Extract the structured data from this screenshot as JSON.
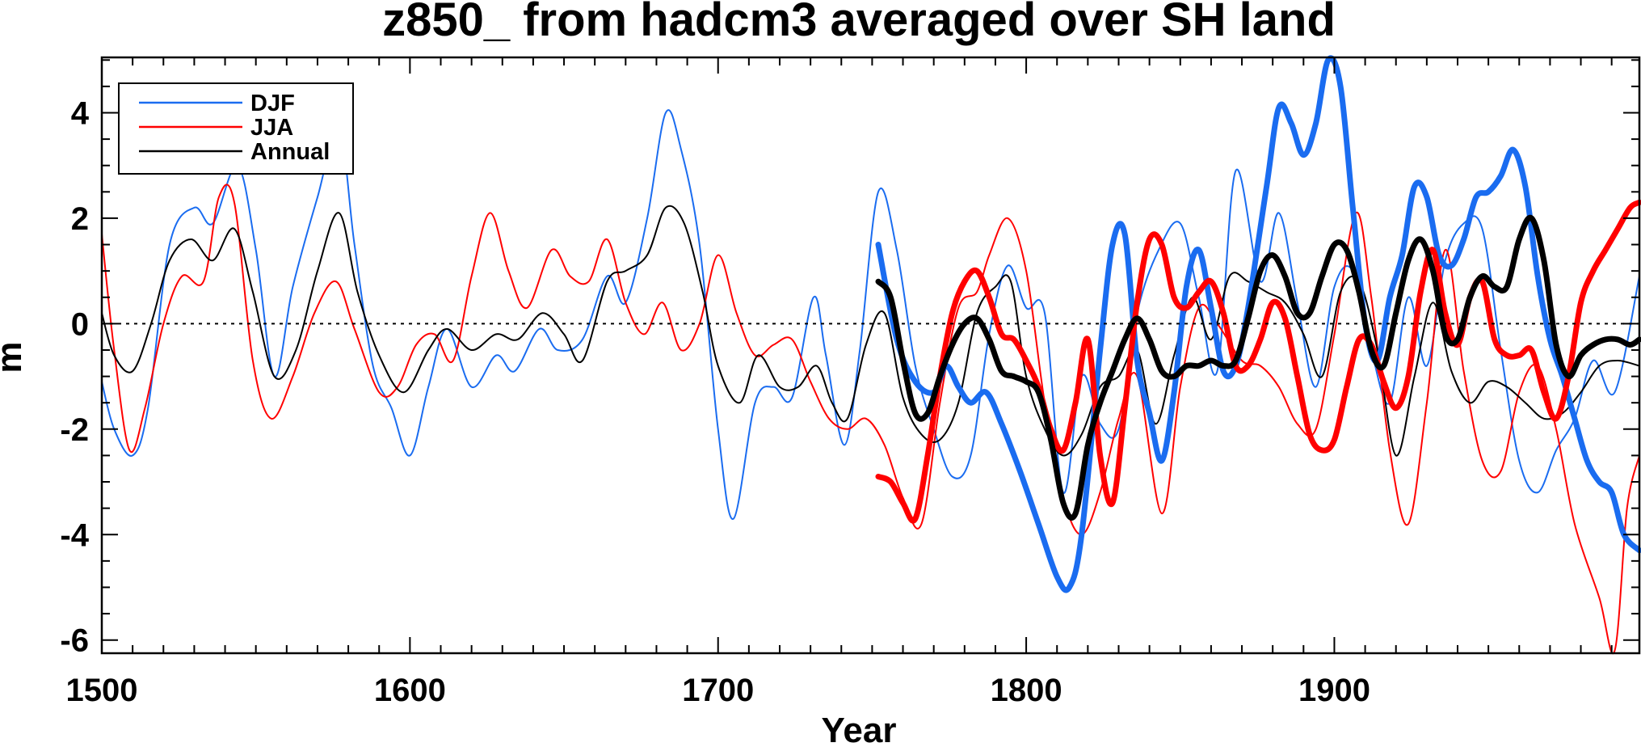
{
  "chart_data": {
    "type": "line",
    "title": "z850_ from hadcm3 averaged over SH land",
    "xlabel": "Year",
    "ylabel": "m",
    "xlim": [
      1500,
      1999
    ],
    "ylim": [
      -6.25,
      5.05
    ],
    "xticks": [
      1500,
      1600,
      1700,
      1800,
      1900
    ],
    "yticks": [
      -6,
      -4,
      -2,
      0,
      2,
      4
    ],
    "zero_line": 0,
    "legend": {
      "placement": "top-left",
      "entries": [
        {
          "label": "DJF",
          "color": "#1a6cf0"
        },
        {
          "label": "JJA",
          "color": "#ff0000"
        },
        {
          "label": "Annual",
          "color": "#000000"
        }
      ]
    },
    "series": [
      {
        "name": "DJF",
        "color": "#1a6cf0",
        "weight": "thin",
        "x": [
          1500,
          1504,
          1510,
          1515,
          1522,
          1530,
          1536,
          1544,
          1550,
          1556,
          1562,
          1570,
          1577,
          1582,
          1588,
          1594,
          1600,
          1606,
          1612,
          1620,
          1628,
          1634,
          1642,
          1648,
          1656,
          1664,
          1670,
          1677,
          1683,
          1688,
          1694,
          1700,
          1705,
          1712,
          1718,
          1724,
          1731,
          1735,
          1741,
          1746,
          1752,
          1758,
          1764,
          1770,
          1776,
          1782,
          1788,
          1794,
          1800,
          1806,
          1812,
          1818,
          1824,
          1830,
          1836,
          1843,
          1850,
          1856,
          1862,
          1868,
          1876,
          1882,
          1888,
          1894,
          1900,
          1906,
          1912,
          1918,
          1924,
          1930,
          1936,
          1942,
          1948,
          1954,
          1960,
          1966,
          1972,
          1978,
          1984,
          1991,
          1999
        ],
        "y": [
          -1.1,
          -2.0,
          -2.5,
          -1.6,
          1.5,
          2.2,
          1.9,
          3.0,
          1.4,
          -1.0,
          0.7,
          2.4,
          3.7,
          1.5,
          -0.8,
          -1.6,
          -2.5,
          -1.2,
          -0.1,
          -1.2,
          -0.6,
          -0.9,
          -0.1,
          -0.5,
          -0.3,
          0.9,
          0.4,
          2.0,
          4.0,
          3.3,
          1.5,
          -2.0,
          -3.7,
          -1.5,
          -1.2,
          -1.4,
          0.5,
          -0.6,
          -2.3,
          -0.5,
          2.5,
          1.4,
          -0.8,
          -2.0,
          -2.9,
          -2.5,
          -0.2,
          1.1,
          0.3,
          0.2,
          -3.2,
          -1.0,
          -1.9,
          -2.0,
          0.2,
          1.4,
          1.9,
          0.5,
          -0.9,
          2.9,
          0.8,
          2.1,
          0.4,
          -1.2,
          0.7,
          1.0,
          -0.5,
          -1.5,
          0.5,
          -0.8,
          1.2,
          1.9,
          1.8,
          -0.5,
          -2.6,
          -3.2,
          -2.4,
          -1.8,
          -0.7,
          -1.3,
          0.9
        ]
      },
      {
        "name": "JJA",
        "color": "#ff0000",
        "weight": "thin",
        "x": [
          1500,
          1504,
          1509,
          1514,
          1520,
          1526,
          1533,
          1538,
          1543,
          1549,
          1555,
          1562,
          1569,
          1576,
          1582,
          1590,
          1596,
          1602,
          1608,
          1614,
          1620,
          1626,
          1632,
          1638,
          1646,
          1652,
          1658,
          1664,
          1670,
          1676,
          1682,
          1688,
          1694,
          1700,
          1706,
          1712,
          1718,
          1724,
          1730,
          1736,
          1742,
          1748,
          1754,
          1760,
          1766,
          1772,
          1778,
          1784,
          1788,
          1794,
          1800,
          1806,
          1812,
          1818,
          1824,
          1830,
          1836,
          1844,
          1850,
          1856,
          1862,
          1870,
          1876,
          1882,
          1888,
          1894,
          1900,
          1907,
          1912,
          1918,
          1924,
          1930,
          1936,
          1942,
          1948,
          1954,
          1960,
          1966,
          1972,
          1978,
          1986,
          1991,
          1995,
          1999
        ],
        "y": [
          1.7,
          -0.5,
          -2.4,
          -1.6,
          0.0,
          0.9,
          0.8,
          2.4,
          2.3,
          -0.7,
          -1.8,
          -1.0,
          0.2,
          0.8,
          -0.1,
          -1.3,
          -1.2,
          -0.4,
          -0.2,
          -0.7,
          0.9,
          2.1,
          1.0,
          0.3,
          1.4,
          0.9,
          0.8,
          1.6,
          0.4,
          -0.2,
          0.4,
          -0.5,
          0.0,
          1.3,
          0.2,
          -0.6,
          -0.4,
          -0.3,
          -1.1,
          -1.8,
          -2.0,
          -1.8,
          -2.3,
          -3.3,
          -3.8,
          -1.5,
          0.3,
          0.6,
          1.3,
          2.0,
          1.0,
          -1.5,
          -3.3,
          -4.0,
          -3.2,
          -1.8,
          -1.0,
          -3.6,
          -1.2,
          0.3,
          0.0,
          -0.7,
          -0.8,
          -1.2,
          -1.9,
          -2.0,
          -0.2,
          2.1,
          0.5,
          -2.4,
          -3.8,
          -1.5,
          1.4,
          -0.9,
          -2.6,
          -2.8,
          -1.3,
          -0.8,
          -2.0,
          -3.8,
          -5.2,
          -6.2,
          -3.5,
          -2.5
        ]
      },
      {
        "name": "Annual",
        "color": "#000000",
        "weight": "thin",
        "x": [
          1500,
          1504,
          1510,
          1516,
          1522,
          1529,
          1536,
          1543,
          1549,
          1556,
          1563,
          1570,
          1577,
          1583,
          1590,
          1598,
          1606,
          1612,
          1620,
          1628,
          1635,
          1643,
          1650,
          1656,
          1664,
          1670,
          1677,
          1683,
          1689,
          1695,
          1700,
          1707,
          1713,
          1720,
          1726,
          1732,
          1737,
          1742,
          1748,
          1754,
          1760,
          1766,
          1772,
          1778,
          1784,
          1790,
          1795,
          1800,
          1806,
          1812,
          1818,
          1824,
          1830,
          1836,
          1842,
          1848,
          1854,
          1860,
          1866,
          1872,
          1878,
          1884,
          1890,
          1896,
          1902,
          1908,
          1914,
          1920,
          1926,
          1932,
          1938,
          1944,
          1950,
          1956,
          1962,
          1968,
          1974,
          1980,
          1986,
          1992,
          1999
        ],
        "y": [
          0.2,
          -0.6,
          -0.9,
          0.0,
          1.2,
          1.6,
          1.2,
          1.8,
          0.6,
          -1.0,
          -0.5,
          1.0,
          2.1,
          0.6,
          -0.6,
          -1.3,
          -0.5,
          -0.1,
          -0.5,
          -0.2,
          -0.3,
          0.2,
          -0.2,
          -0.7,
          0.8,
          1.0,
          1.3,
          2.2,
          1.9,
          0.6,
          -0.8,
          -1.5,
          -0.6,
          -1.2,
          -1.2,
          -0.8,
          -1.5,
          -1.8,
          -0.4,
          0.2,
          -1.4,
          -2.1,
          -2.2,
          -1.5,
          0.2,
          0.7,
          0.8,
          -1.0,
          -2.0,
          -2.5,
          -2.1,
          -1.2,
          -1.0,
          -0.5,
          -1.9,
          -0.6,
          0.5,
          -0.3,
          0.9,
          0.8,
          0.6,
          0.4,
          -0.2,
          -1.0,
          0.6,
          0.8,
          -0.5,
          -2.5,
          -1.0,
          0.4,
          -0.9,
          -1.5,
          -1.1,
          -1.2,
          -1.5,
          -1.8,
          -1.7,
          -1.3,
          -0.8,
          -0.7,
          -0.8
        ]
      },
      {
        "name": "DJF (smoothed)",
        "color": "#1a6cf0",
        "weight": "thick",
        "x": [
          1752,
          1758,
          1764,
          1770,
          1774,
          1778,
          1782,
          1787,
          1792,
          1798,
          1804,
          1810,
          1814,
          1818,
          1824,
          1828,
          1832,
          1836,
          1840,
          1844,
          1848,
          1852,
          1856,
          1860,
          1864,
          1868,
          1872,
          1878,
          1882,
          1886,
          1890,
          1894,
          1898,
          1902,
          1906,
          1910,
          1914,
          1918,
          1922,
          1926,
          1930,
          1934,
          1938,
          1942,
          1946,
          1950,
          1954,
          1958,
          1962,
          1966,
          1970,
          1974,
          1978,
          1982,
          1986,
          1990,
          1994,
          1999
        ],
        "y": [
          1.5,
          -0.3,
          -1.1,
          -1.3,
          -0.8,
          -1.2,
          -1.5,
          -1.3,
          -1.9,
          -2.8,
          -3.8,
          -4.8,
          -5.0,
          -4.0,
          -0.5,
          1.5,
          1.7,
          -0.7,
          -1.7,
          -2.6,
          -1.3,
          0.7,
          1.4,
          0.3,
          -0.9,
          -0.8,
          0.3,
          2.6,
          4.1,
          3.8,
          3.2,
          3.8,
          5.0,
          4.5,
          2.2,
          0.0,
          -0.7,
          0.5,
          1.3,
          2.6,
          2.4,
          1.3,
          1.1,
          1.6,
          2.4,
          2.5,
          2.8,
          3.3,
          2.6,
          0.9,
          -0.3,
          -1.0,
          -1.8,
          -2.6,
          -3.0,
          -3.2,
          -4.0,
          -4.3
        ]
      },
      {
        "name": "JJA (smoothed)",
        "color": "#ff0000",
        "weight": "thick",
        "x": [
          1752,
          1756,
          1760,
          1764,
          1768,
          1772,
          1776,
          1780,
          1784,
          1788,
          1792,
          1796,
          1800,
          1804,
          1808,
          1812,
          1816,
          1820,
          1824,
          1828,
          1832,
          1836,
          1840,
          1844,
          1848,
          1852,
          1856,
          1860,
          1864,
          1868,
          1872,
          1876,
          1880,
          1884,
          1888,
          1892,
          1896,
          1900,
          1904,
          1908,
          1912,
          1916,
          1920,
          1924,
          1928,
          1932,
          1936,
          1940,
          1944,
          1948,
          1952,
          1956,
          1960,
          1964,
          1968,
          1972,
          1976,
          1980,
          1984,
          1988,
          1992,
          1996,
          1999
        ],
        "y": [
          -2.9,
          -3.0,
          -3.4,
          -3.7,
          -2.5,
          -1.0,
          0.2,
          0.8,
          1.0,
          0.5,
          -0.2,
          -0.3,
          -0.7,
          -1.2,
          -2.0,
          -2.4,
          -1.5,
          -0.3,
          -2.5,
          -3.4,
          -1.6,
          0.4,
          1.6,
          1.5,
          0.5,
          0.3,
          0.6,
          0.8,
          0.2,
          -0.8,
          -0.8,
          -0.3,
          0.4,
          0.1,
          -1.0,
          -2.1,
          -2.4,
          -2.2,
          -1.2,
          -0.3,
          -0.4,
          -1.1,
          -1.6,
          -1.0,
          0.6,
          1.4,
          0.2,
          -0.4,
          0.5,
          0.8,
          -0.3,
          -0.6,
          -0.6,
          -0.5,
          -1.3,
          -1.8,
          -1.0,
          0.4,
          1.0,
          1.4,
          1.8,
          2.2,
          2.3
        ]
      },
      {
        "name": "Annual (smoothed)",
        "color": "#000000",
        "weight": "thick",
        "x": [
          1752,
          1756,
          1760,
          1764,
          1768,
          1772,
          1776,
          1780,
          1784,
          1788,
          1792,
          1796,
          1800,
          1804,
          1808,
          1812,
          1816,
          1820,
          1824,
          1828,
          1832,
          1836,
          1840,
          1844,
          1848,
          1852,
          1856,
          1860,
          1864,
          1868,
          1872,
          1876,
          1880,
          1884,
          1888,
          1892,
          1896,
          1900,
          1904,
          1908,
          1912,
          1916,
          1920,
          1924,
          1928,
          1932,
          1936,
          1940,
          1944,
          1948,
          1952,
          1956,
          1960,
          1964,
          1968,
          1972,
          1976,
          1980,
          1984,
          1988,
          1992,
          1996,
          1999
        ],
        "y": [
          0.8,
          0.5,
          -0.7,
          -1.7,
          -1.7,
          -1.0,
          -0.4,
          0.0,
          0.1,
          -0.3,
          -0.9,
          -1.0,
          -1.1,
          -1.3,
          -2.2,
          -3.4,
          -3.6,
          -2.3,
          -1.5,
          -0.9,
          -0.3,
          0.1,
          -0.3,
          -0.9,
          -1.0,
          -0.8,
          -0.8,
          -0.7,
          -0.8,
          -0.7,
          0.1,
          1.0,
          1.3,
          0.9,
          0.2,
          0.2,
          0.9,
          1.5,
          1.4,
          0.6,
          -0.5,
          -0.8,
          0.2,
          1.2,
          1.6,
          1.0,
          -0.2,
          -0.3,
          0.5,
          0.9,
          0.7,
          0.7,
          1.6,
          2.0,
          1.2,
          -0.4,
          -1.0,
          -0.6,
          -0.4,
          -0.3,
          -0.3,
          -0.4,
          -0.3
        ]
      }
    ]
  }
}
